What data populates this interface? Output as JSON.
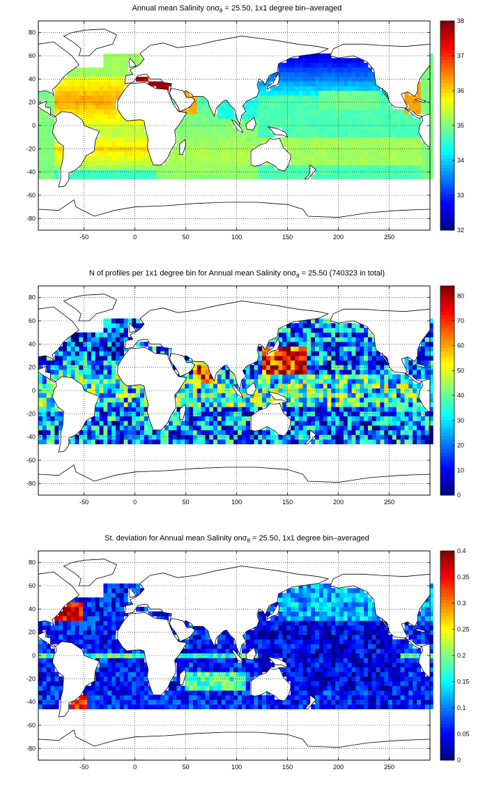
{
  "colors": {
    "ocean_fill_note": "jet colormap",
    "grid": "#000000",
    "coast": "#000000",
    "background": "#ffffff"
  },
  "panels": [
    {
      "title_main": "Annual mean Salinity on",
      "title_sigma": "σ",
      "title_sub": "θ",
      "title_rest": " = 25.50, 1x1 degree bin–averaged",
      "x_ticks": [
        "-50",
        "0",
        "50",
        "100",
        "150",
        "200",
        "250"
      ],
      "y_ticks": [
        "80",
        "60",
        "40",
        "20",
        "0",
        "-20",
        "-40",
        "-60",
        "-80"
      ],
      "colorbar_ticks": [
        "38",
        "37",
        "36",
        "35",
        "34",
        "33",
        "32"
      ],
      "colorbar_range": [
        32,
        38
      ],
      "field": "salinity"
    },
    {
      "title_main": "N of profiles per 1x1 degree bin for Annual mean Salinity on",
      "title_sigma": "σ",
      "title_sub": "θ",
      "title_rest": " = 25.50 (740323 in total)",
      "x_ticks": [
        "-50",
        "0",
        "50",
        "100",
        "150",
        "200",
        "250"
      ],
      "y_ticks": [
        "80",
        "60",
        "40",
        "20",
        "0",
        "-20",
        "-40",
        "-60",
        "-80"
      ],
      "colorbar_ticks": [
        "80",
        "70",
        "60",
        "50",
        "40",
        "30",
        "20",
        "10",
        "0"
      ],
      "colorbar_range": [
        0,
        84
      ],
      "field": "count"
    },
    {
      "title_main": "St. deviation for Annual mean Salinity on",
      "title_sigma": "σ",
      "title_sub": "θ",
      "title_rest": " = 25.50, 1x1 degree bin–averaged",
      "x_ticks": [
        "-50",
        "0",
        "50",
        "100",
        "150",
        "200",
        "250"
      ],
      "y_ticks": [
        "80",
        "60",
        "40",
        "20",
        "0",
        "-20",
        "-40",
        "-60",
        "-80"
      ],
      "colorbar_ticks": [
        "0.4",
        "0.35",
        "0.3",
        "0.25",
        "0.2",
        "0.15",
        "0.1",
        "0.05",
        "0"
      ],
      "colorbar_range": [
        0,
        0.4
      ],
      "field": "stdev"
    }
  ]
}
